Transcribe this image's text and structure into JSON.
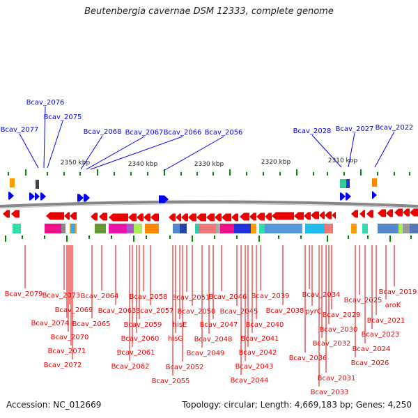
{
  "title": "Beutenbergia cavernae DSM 12333, complete genome",
  "accession": "Accession: NC_012669",
  "topology": "Topology: circular; Length: 4,669,183 bp; Genes: 4,250",
  "colors": {
    "forward": "#0000ee",
    "reverse": "#ee0000",
    "tick": "#008800",
    "backbone": "#888888"
  },
  "kbp_labels": [
    "2350 kbp",
    "2340 kbp",
    "2330 kbp",
    "2320 kbp",
    "2310 kbp"
  ],
  "forward_labels": [
    "Bcav_2077",
    "Bcav_2076",
    "Bcav_2075",
    "Bcav_2068",
    "Bcav_2067",
    "Bcav_2066",
    "Bcav_2056",
    "Bcav_2028",
    "Bcav_2027",
    "Bcav_2022"
  ],
  "reverse_labels": [
    "Bcav_2079",
    "Bcav_2073",
    "Bcav_2074",
    "Bcav_2069",
    "Bcav_2070",
    "Bcav_2071",
    "Bcav_2072",
    "Bcav_2065",
    "Bcav_2064",
    "Bcav_2063",
    "Bcav_2062",
    "Bcav_2061",
    "Bcav_2060",
    "Bcav_2059",
    "Bcav_2058",
    "Bcav_2057",
    "Bcav_2055",
    "hisG",
    "hisE",
    "Bcav_2052",
    "Bcav_2051",
    "Bcav_2050",
    "Bcav_2049",
    "Bcav_2048",
    "Bcav_2047",
    "Bcav_2046",
    "Bcav_2045",
    "Bcav_2044",
    "Bcav_2043",
    "Bcav_2042",
    "Bcav_2041",
    "Bcav_2040",
    "Bcav_2039",
    "Bcav_2038",
    "Bcav_2036",
    "Bcav_2034",
    "pyrC",
    "Bcav_2033",
    "Bcav_2032",
    "Bcav_2031",
    "Bcav_2030",
    "Bcav_2029",
    "Bcav_2026",
    "Bcav_2025",
    "Bcav_2024",
    "Bcav_2023",
    "Bcav_2021",
    "aroK",
    "Bcav_2019"
  ]
}
